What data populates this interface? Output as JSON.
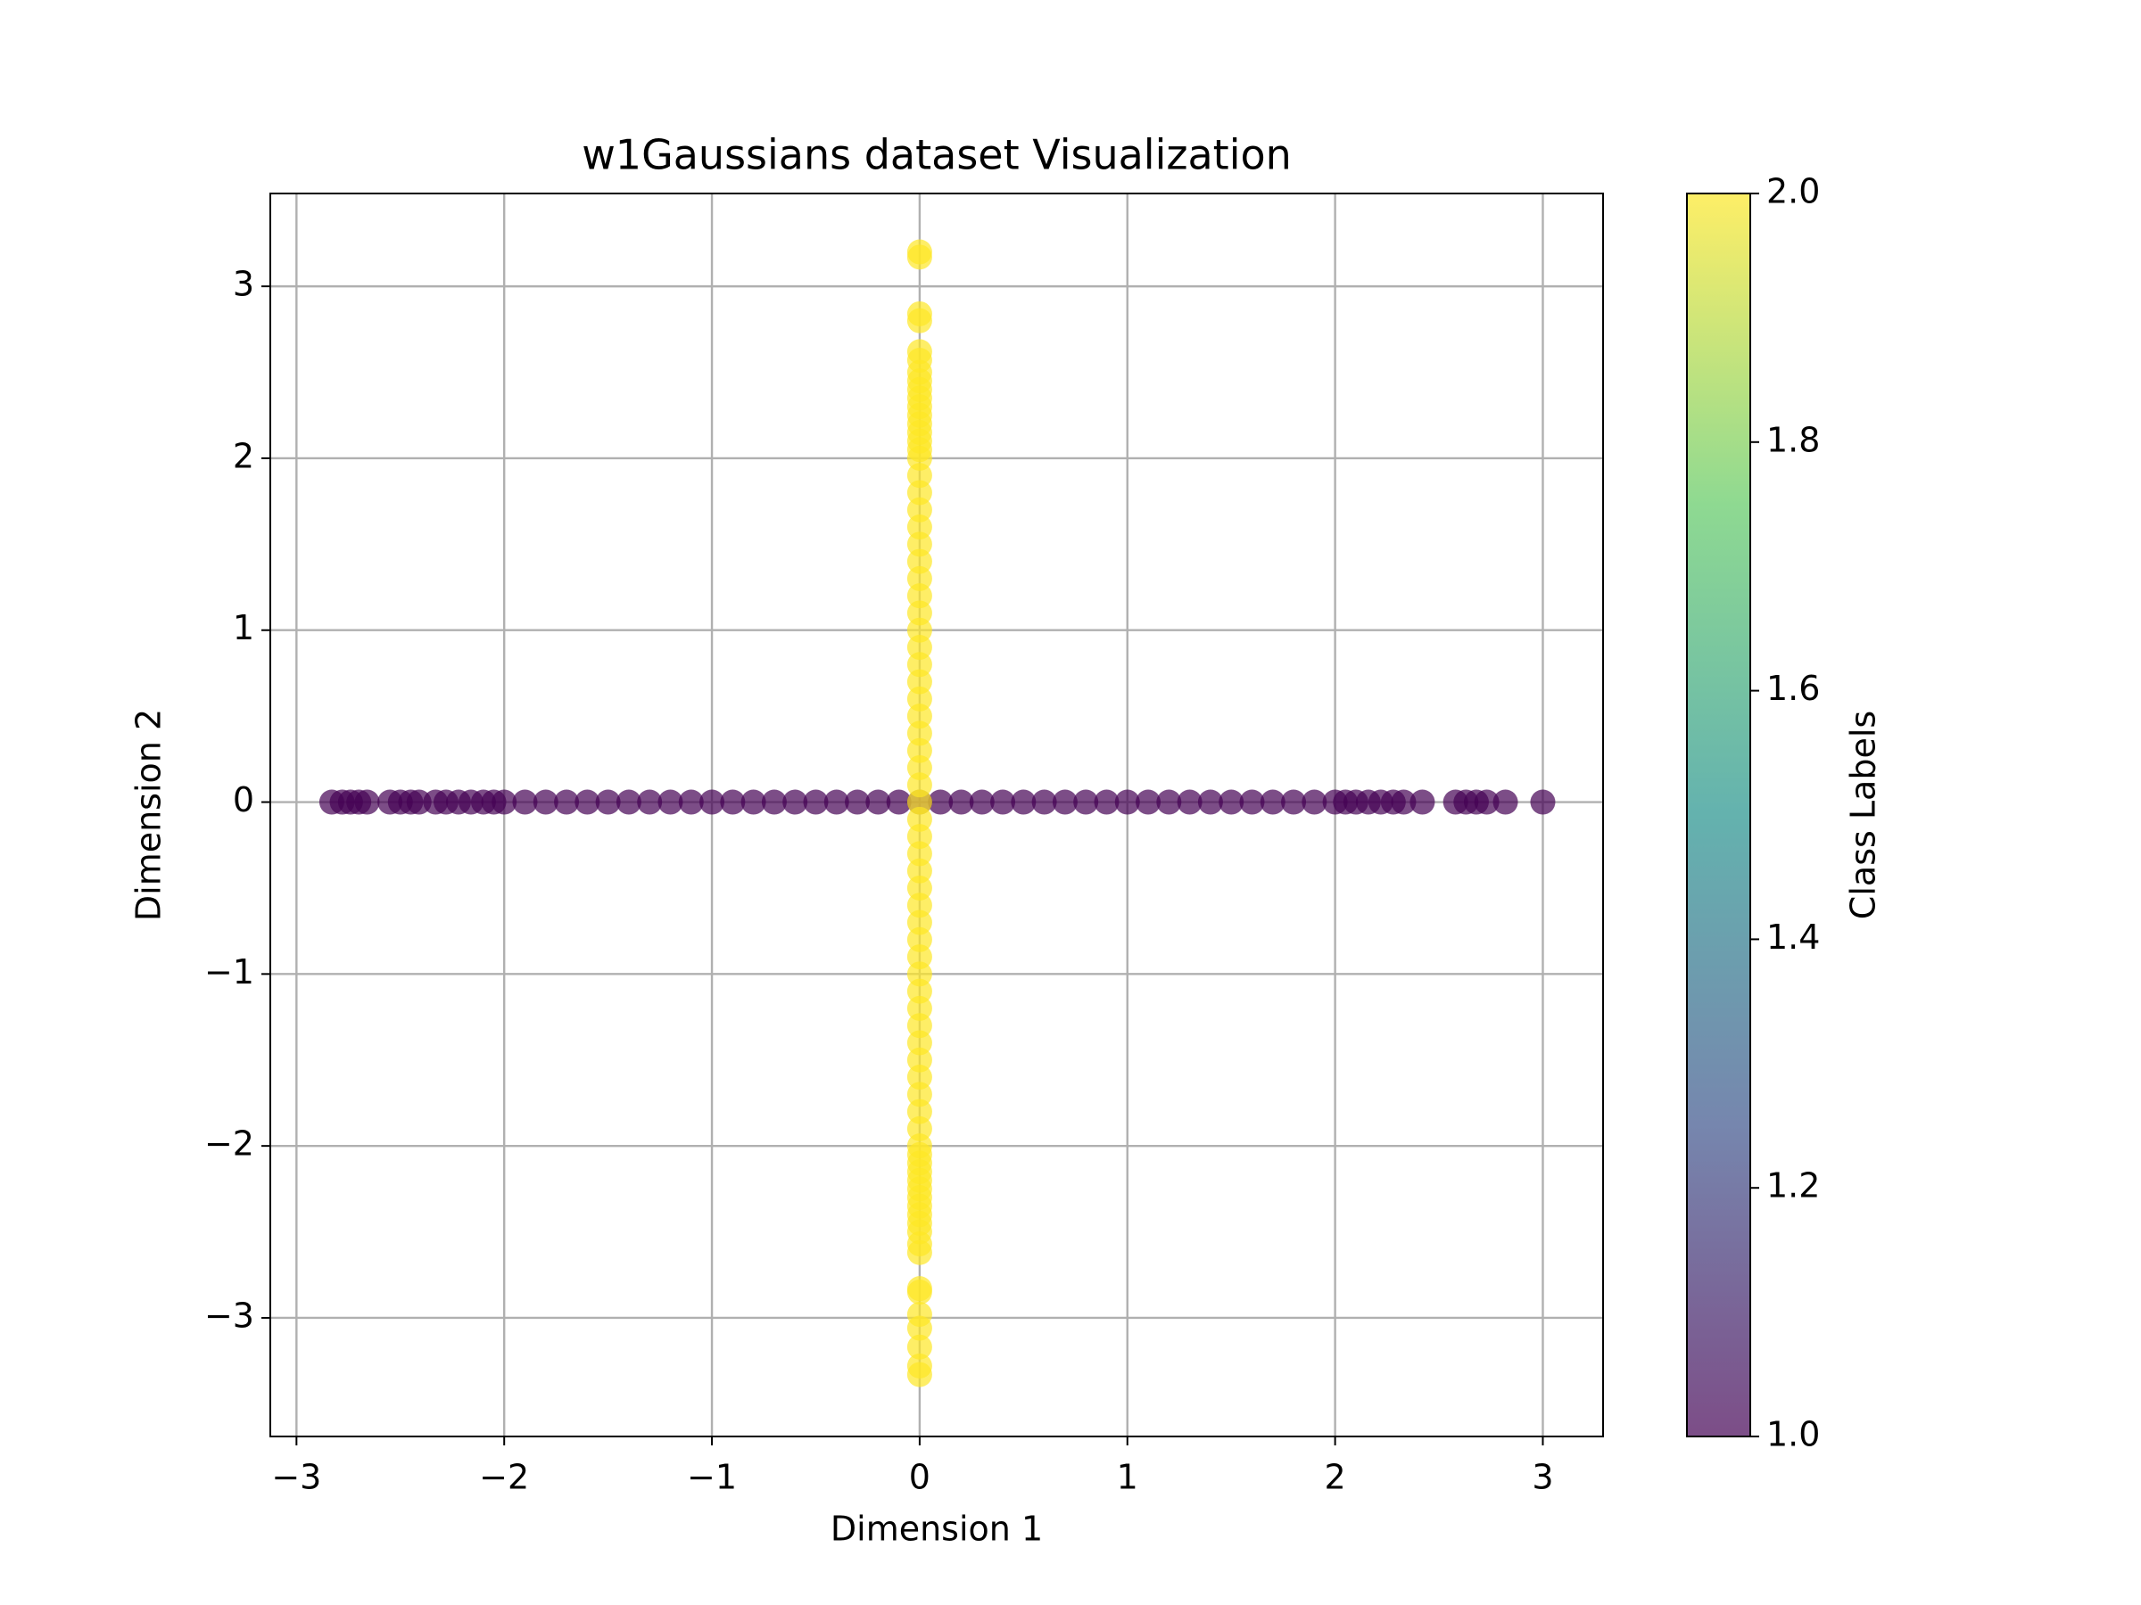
{
  "chart_data": {
    "type": "scatter",
    "title": "w1Gaussians dataset Visualization",
    "x_label": "Dimension 1",
    "y_label": "Dimension 2",
    "xlim": [
      -3.126,
      3.29
    ],
    "ylim": [
      -3.69,
      3.54
    ],
    "xticks": [
      {
        "value": -3,
        "label": "−3"
      },
      {
        "value": -2,
        "label": "−2"
      },
      {
        "value": -1,
        "label": "−1"
      },
      0,
      1,
      2,
      3
    ],
    "yticks": [
      {
        "value": -3,
        "label": "−3"
      },
      {
        "value": -2,
        "label": "−2"
      },
      {
        "value": -1,
        "label": "−1"
      },
      0,
      1,
      2,
      3
    ],
    "grid": true,
    "alpha": 0.7,
    "series": [
      {
        "color": "#440154",
        "x": [
          -2.83,
          -2.78,
          -2.74,
          -2.7,
          -2.66,
          -2.55,
          -2.5,
          -2.45,
          -2.41,
          -2.33,
          -2.28,
          -2.22,
          -2.16,
          -2.1,
          -2.05,
          -2,
          -1.9,
          -1.8,
          -1.7,
          -1.6,
          -1.5,
          -1.4,
          -1.3,
          -1.2,
          -1.1,
          -1,
          -0.9,
          -0.8,
          -0.7,
          -0.6,
          -0.5,
          -0.4,
          -0.3,
          -0.2,
          -0.1,
          0,
          0.1,
          0.2,
          0.3,
          0.4,
          0.5,
          0.6,
          0.7,
          0.8,
          0.9,
          1,
          1.1,
          1.2,
          1.3,
          1.4,
          1.5,
          1.6,
          1.7,
          1.8,
          1.9,
          2,
          2.05,
          2.1,
          2.16,
          2.22,
          2.28,
          2.33,
          2.42,
          2.58,
          2.63,
          2.68,
          2.73,
          2.82,
          3.0
        ],
        "values": [
          0,
          0,
          0,
          0,
          0,
          0,
          0,
          0,
          0,
          0,
          0,
          0,
          0,
          0,
          0,
          0,
          0,
          0,
          0,
          0,
          0,
          0,
          0,
          0,
          0,
          0,
          0,
          0,
          0,
          0,
          0,
          0,
          0,
          0,
          0,
          0,
          0,
          0,
          0,
          0,
          0,
          0,
          0,
          0,
          0,
          0,
          0,
          0,
          0,
          0,
          0,
          0,
          0,
          0,
          0,
          0,
          0,
          0,
          0,
          0,
          0,
          0,
          0,
          0,
          0,
          0,
          0,
          0,
          0
        ]
      },
      {
        "color": "#fde725",
        "x": [
          0,
          0,
          0,
          0,
          0,
          0,
          0,
          0,
          0,
          0,
          0,
          0,
          0,
          0,
          0,
          0,
          0,
          0,
          0,
          0,
          0,
          0,
          0,
          0,
          0,
          0,
          0,
          0,
          0,
          0,
          0,
          0,
          0,
          0,
          0,
          0,
          0,
          0,
          0,
          0,
          0,
          0,
          0,
          0,
          0,
          0,
          0,
          0,
          0,
          0,
          0,
          0,
          0,
          0,
          0,
          0,
          0,
          0,
          0,
          0,
          0,
          0,
          0,
          0,
          0,
          0,
          0,
          0,
          0,
          0,
          0,
          0,
          0,
          0,
          0,
          0
        ],
        "values": [
          -3.33,
          -3.28,
          -3.17,
          -3.06,
          -2.98,
          -2.85,
          -2.83,
          -2.62,
          -2.57,
          -2.5,
          -2.45,
          -2.4,
          -2.35,
          -2.3,
          -2.25,
          -2.2,
          -2.15,
          -2.1,
          -2.05,
          -2,
          -1.9,
          -1.8,
          -1.7,
          -1.6,
          -1.5,
          -1.4,
          -1.3,
          -1.2,
          -1.1,
          -1,
          -0.9,
          -0.8,
          -0.7,
          -0.6,
          -0.5,
          -0.4,
          -0.3,
          -0.2,
          -0.1,
          0,
          0.1,
          0.2,
          0.3,
          0.4,
          0.5,
          0.6,
          0.7,
          0.8,
          0.9,
          1,
          1.1,
          1.2,
          1.3,
          1.4,
          1.5,
          1.6,
          1.7,
          1.8,
          1.9,
          2,
          2.05,
          2.1,
          2.15,
          2.2,
          2.25,
          2.3,
          2.35,
          2.4,
          2.45,
          2.5,
          2.57,
          2.62,
          2.8,
          2.84,
          3.17,
          3.2
        ]
      }
    ],
    "colorbar": {
      "label": "Class Labels",
      "lim": [
        1,
        2
      ],
      "ticks": [
        {
          "value": 1,
          "label": "1.0"
        },
        1.2,
        1.4,
        1.6,
        1.8,
        {
          "value": 2,
          "label": "2.0"
        }
      ],
      "colormap": [
        "#440154",
        "#3b528b",
        "#21918c",
        "#5ec962",
        "#fde725"
      ]
    }
  }
}
